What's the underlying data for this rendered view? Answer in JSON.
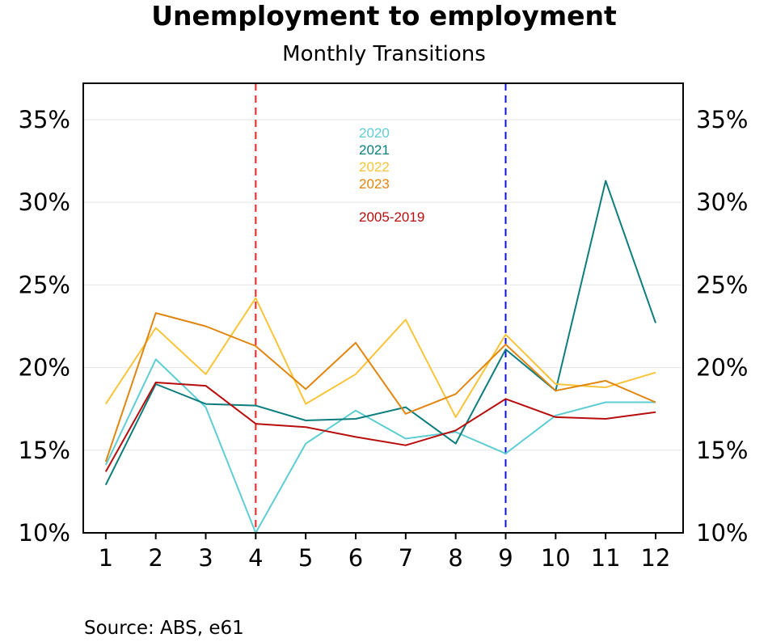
{
  "title": "Unemployment to employment",
  "subtitle": "Monthly Transitions",
  "source": "Source: ABS, e61",
  "chart_data": {
    "type": "line",
    "title": "Unemployment to employment",
    "subtitle": "Monthly Transitions",
    "x": [
      1,
      2,
      3,
      4,
      5,
      6,
      7,
      8,
      9,
      10,
      11,
      12
    ],
    "x_tick_labels": [
      "1",
      "2",
      "3",
      "4",
      "5",
      "6",
      "7",
      "8",
      "9",
      "10",
      "11",
      "12"
    ],
    "y_tick_labels": [
      "10%",
      "15%",
      "20%",
      "25%",
      "30%",
      "35%"
    ],
    "y_ticks": [
      10,
      15,
      20,
      25,
      30,
      35
    ],
    "ylim": [
      10,
      37.2
    ],
    "xlim": [
      0.55,
      12.55
    ],
    "grid": "horizontal",
    "dual_y_axis": true,
    "vertical_reference_lines": [
      {
        "x": 4,
        "color": "#ff2020",
        "style": "dashed"
      },
      {
        "x": 9,
        "color": "#1010e0",
        "style": "dashed"
      }
    ],
    "legend_position": "top-center",
    "series": [
      {
        "name": "2020",
        "color": "#5ecdd4",
        "values": [
          14.1,
          20.5,
          17.6,
          10.0,
          15.4,
          17.4,
          15.7,
          16.1,
          14.8,
          17.1,
          17.9,
          17.9
        ]
      },
      {
        "name": "2021",
        "color": "#0d7d7d",
        "values": [
          12.9,
          19.0,
          17.8,
          17.7,
          16.8,
          16.9,
          17.6,
          15.4,
          21.1,
          18.6,
          31.3,
          22.7
        ]
      },
      {
        "name": "2022",
        "color": "#f7c43a",
        "values": [
          17.8,
          22.4,
          19.6,
          24.2,
          17.8,
          19.6,
          22.9,
          17.0,
          22.0,
          19.0,
          18.8,
          19.7
        ]
      },
      {
        "name": "2023",
        "color": "#e0860e",
        "values": [
          14.3,
          23.3,
          22.5,
          21.3,
          18.7,
          21.5,
          17.2,
          18.4,
          21.4,
          18.6,
          19.2,
          17.9
        ]
      },
      {
        "name": "2005-2019",
        "color": "#b70d0d",
        "values": [
          13.7,
          19.1,
          18.9,
          16.6,
          16.4,
          15.8,
          15.3,
          16.2,
          18.1,
          17.0,
          16.9,
          17.3
        ]
      }
    ]
  }
}
